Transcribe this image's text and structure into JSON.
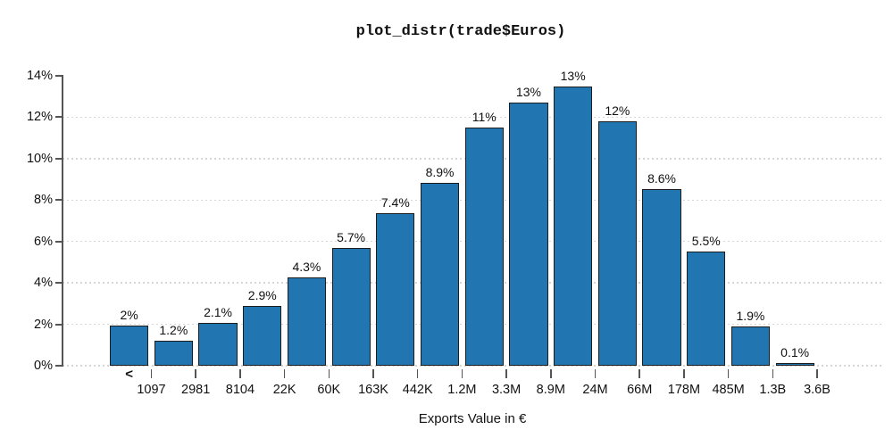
{
  "chart_data": {
    "type": "bar",
    "title": "plot_distr(trade$Euros)",
    "xlabel": "Exports Value in €",
    "ylabel": "",
    "ylim": [
      0,
      14
    ],
    "y_tick_labels": [
      "0%",
      "2%",
      "4%",
      "6%",
      "8%",
      "10%",
      "12%",
      "14%"
    ],
    "grid": "dotted horizontal lines at 0%-12%, legend none",
    "less_than_marker": "<",
    "x_tick_labels": [
      "1097",
      "2981",
      "8104",
      "22K",
      "60K",
      "163K",
      "442K",
      "1.2M",
      "3.3M",
      "8.9M",
      "24M",
      "66M",
      "178M",
      "485M",
      "1.3B",
      "3.6B"
    ],
    "bar_labels": [
      "2%",
      "1.2%",
      "2.1%",
      "2.9%",
      "4.3%",
      "5.7%",
      "7.4%",
      "8.9%",
      "11%",
      "13%",
      "13%",
      "12%",
      "8.6%",
      "5.5%",
      "1.9%",
      "0.1%"
    ],
    "values": [
      1.95,
      1.2,
      2.05,
      2.9,
      4.25,
      5.7,
      7.35,
      8.85,
      11.5,
      12.7,
      13.5,
      11.8,
      8.55,
      5.5,
      1.9,
      0.15
    ],
    "colors": {
      "bar_fill": "#2176b2",
      "bar_border": "#1c1c1c",
      "axis": "#555555",
      "grid": "#d6d6d6",
      "text": "#111111"
    }
  }
}
